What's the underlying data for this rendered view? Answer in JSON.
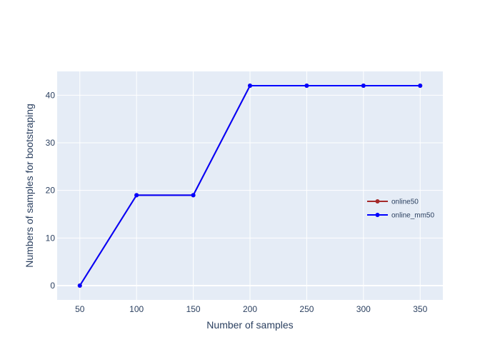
{
  "chart_data": {
    "type": "line",
    "xlabel": "Number of samples",
    "ylabel": "Numbers of samples for bootstraping",
    "xlim": [
      30,
      370
    ],
    "ylim": [
      -3,
      45
    ],
    "xticks": [
      50,
      100,
      150,
      200,
      250,
      300,
      350
    ],
    "yticks": [
      0,
      10,
      20,
      30,
      40
    ],
    "grid": true,
    "legend_position": "right",
    "plot_background": "#e5ecf6",
    "series": [
      {
        "name": "online50",
        "color": "#a52a2a",
        "x": [
          50,
          100,
          150,
          200,
          250,
          300,
          350
        ],
        "y": [
          0,
          19,
          19,
          42,
          42,
          42,
          42
        ]
      },
      {
        "name": "online_mm50",
        "color": "#0000ff",
        "x": [
          50,
          100,
          150,
          200,
          250,
          300,
          350
        ],
        "y": [
          0,
          19,
          19,
          42,
          42,
          42,
          42
        ]
      }
    ]
  }
}
